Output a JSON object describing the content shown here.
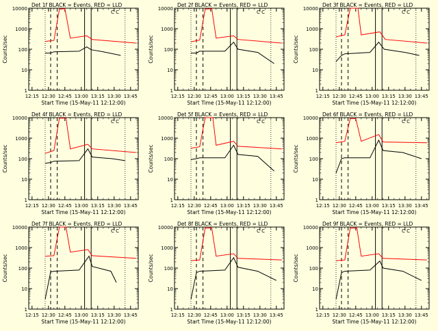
{
  "chart_data": {
    "type": "line",
    "y_scale": "log",
    "ylim": [
      1,
      10000
    ],
    "y_ticks": [
      1,
      10,
      100,
      1000,
      10000
    ],
    "y_tick_labels": [
      "1",
      "10",
      "100",
      "1000",
      "10000"
    ],
    "ylabel": "Counts/sec",
    "xlabel": "Start Time (15-May-11 12:12:00)",
    "x_range": [
      "12:12",
      "13:52"
    ],
    "x_ticks": [
      "12:15",
      "12:30",
      "12:45",
      "13:00",
      "13:15",
      "13:30",
      "13:45"
    ],
    "series_legend": "BLACK = Events, RED = LLD",
    "colors": {
      "events": "#000000",
      "lld": "#ff0000",
      "background": "#ffffe0"
    },
    "dashed_markers": [
      "12:32",
      "12:38"
    ],
    "solid_markers": [
      "13:03",
      "13:09"
    ],
    "dotted_markers": [
      "12:27",
      "13:40"
    ],
    "panels": [
      {
        "title": "Det 1f BLACK = Events, RED = LLD",
        "flags": "C C",
        "series": [
          {
            "name": "Events",
            "values": [
              [
                12.27,
                65
              ],
              [
                12.32,
                65
              ],
              [
                12.35,
                75
              ],
              [
                12.58,
                80
              ],
              [
                13.05,
                130
              ],
              [
                13.09,
                95
              ],
              [
                13.2,
                75
              ],
              [
                13.36,
                50
              ]
            ]
          },
          {
            "name": "LLD",
            "values": [
              [
                12.27,
                240
              ],
              [
                12.35,
                270
              ],
              [
                12.4,
                9000
              ],
              [
                12.45,
                9500
              ],
              [
                12.5,
                350
              ],
              [
                13.05,
                450
              ],
              [
                13.1,
                300
              ],
              [
                13.5,
                200
              ]
            ]
          }
        ]
      },
      {
        "title": "Det 2f BLACK = Events, RED = LLD",
        "flags": "C C",
        "series": [
          {
            "name": "Events",
            "values": [
              [
                12.27,
                65
              ],
              [
                12.32,
                65
              ],
              [
                12.35,
                80
              ],
              [
                12.58,
                80
              ],
              [
                13.06,
                220
              ],
              [
                13.1,
                100
              ],
              [
                13.28,
                70
              ],
              [
                13.43,
                20
              ]
            ]
          },
          {
            "name": "LLD",
            "values": [
              [
                12.27,
                230
              ],
              [
                12.35,
                280
              ],
              [
                12.4,
                9000
              ],
              [
                12.46,
                9500
              ],
              [
                12.5,
                350
              ],
              [
                13.06,
                450
              ],
              [
                13.1,
                300
              ],
              [
                13.5,
                200
              ]
            ]
          }
        ]
      },
      {
        "title": "Det 3f BLACK = Events, RED = LLD",
        "flags": "C C",
        "series": [
          {
            "name": "Events",
            "values": [
              [
                12.27,
                25
              ],
              [
                12.32,
                50
              ],
              [
                12.35,
                60
              ],
              [
                12.58,
                70
              ],
              [
                13.06,
                220
              ],
              [
                13.11,
                100
              ],
              [
                13.3,
                70
              ],
              [
                13.43,
                50
              ]
            ]
          },
          {
            "name": "LLD",
            "values": [
              [
                12.27,
                400
              ],
              [
                12.35,
                500
              ],
              [
                12.4,
                10000
              ],
              [
                12.47,
                10000
              ],
              [
                12.5,
                500
              ],
              [
                13.07,
                700
              ],
              [
                13.12,
                300
              ],
              [
                13.5,
                200
              ]
            ]
          }
        ]
      },
      {
        "title": "Det 4f BLACK = Events, RED = LLD",
        "flags": "C C",
        "series": [
          {
            "name": "Events",
            "values": [
              [
                12.27,
                60
              ],
              [
                12.32,
                65
              ],
              [
                12.35,
                75
              ],
              [
                12.58,
                80
              ],
              [
                13.06,
                300
              ],
              [
                13.1,
                120
              ],
              [
                13.28,
                100
              ],
              [
                13.4,
                80
              ]
            ]
          },
          {
            "name": "LLD",
            "values": [
              [
                12.27,
                180
              ],
              [
                12.35,
                250
              ],
              [
                12.4,
                9500
              ],
              [
                12.46,
                9500
              ],
              [
                12.5,
                300
              ],
              [
                13.06,
                500
              ],
              [
                13.1,
                300
              ],
              [
                13.5,
                200
              ]
            ]
          }
        ]
      },
      {
        "title": "Det 5f BLACK = Events, RED = LLD",
        "flags": "C C",
        "series": [
          {
            "name": "Events",
            "values": [
              [
                12.27,
                90
              ],
              [
                12.32,
                100
              ],
              [
                12.35,
                110
              ],
              [
                12.58,
                110
              ],
              [
                13.06,
                450
              ],
              [
                13.1,
                160
              ],
              [
                13.28,
                130
              ],
              [
                13.43,
                25
              ]
            ]
          },
          {
            "name": "LLD",
            "values": [
              [
                12.27,
                320
              ],
              [
                12.35,
                380
              ],
              [
                12.4,
                10000
              ],
              [
                12.47,
                10000
              ],
              [
                12.5,
                450
              ],
              [
                13.06,
                700
              ],
              [
                13.1,
                400
              ],
              [
                13.5,
                300
              ]
            ]
          }
        ]
      },
      {
        "title": "Det 6f BLACK = Events, RED = LLD",
        "flags": "C C",
        "series": [
          {
            "name": "Events",
            "values": [
              [
                12.27,
                20
              ],
              [
                12.32,
                100
              ],
              [
                12.35,
                110
              ],
              [
                12.58,
                110
              ],
              [
                13.06,
                800
              ],
              [
                13.1,
                250
              ],
              [
                13.28,
                200
              ],
              [
                13.45,
                100
              ]
            ]
          },
          {
            "name": "LLD",
            "values": [
              [
                12.27,
                600
              ],
              [
                12.35,
                700
              ],
              [
                12.4,
                9000
              ],
              [
                12.45,
                9000
              ],
              [
                12.5,
                700
              ],
              [
                13.06,
                1500
              ],
              [
                13.1,
                650
              ],
              [
                13.5,
                600
              ]
            ]
          }
        ]
      },
      {
        "title": "Det 7f BLACK = Events, RED = LLD",
        "flags": "C C",
        "series": [
          {
            "name": "Events",
            "values": [
              [
                12.27,
                3
              ],
              [
                12.32,
                65
              ],
              [
                12.35,
                70
              ],
              [
                12.58,
                80
              ],
              [
                13.07,
                380
              ],
              [
                13.1,
                120
              ],
              [
                13.27,
                70
              ],
              [
                13.32,
                20
              ]
            ]
          },
          {
            "name": "LLD",
            "values": [
              [
                12.27,
                380
              ],
              [
                12.35,
                400
              ],
              [
                12.4,
                10000
              ],
              [
                12.46,
                10000
              ],
              [
                12.5,
                600
              ],
              [
                13.06,
                800
              ],
              [
                13.1,
                400
              ],
              [
                13.5,
                300
              ]
            ]
          }
        ]
      },
      {
        "title": "Det 8f BLACK = Events, RED = LLD",
        "flags": "C C",
        "series": [
          {
            "name": "Events",
            "values": [
              [
                12.27,
                3
              ],
              [
                12.32,
                60
              ],
              [
                12.35,
                70
              ],
              [
                12.58,
                80
              ],
              [
                13.06,
                320
              ],
              [
                13.1,
                110
              ],
              [
                13.28,
                70
              ],
              [
                13.45,
                25
              ]
            ]
          },
          {
            "name": "LLD",
            "values": [
              [
                12.27,
                230
              ],
              [
                12.35,
                250
              ],
              [
                12.4,
                9000
              ],
              [
                12.46,
                9000
              ],
              [
                12.5,
                380
              ],
              [
                13.06,
                500
              ],
              [
                13.1,
                300
              ],
              [
                13.5,
                250
              ]
            ]
          }
        ]
      },
      {
        "title": "Det 9f BLACK = Events, RED = LLD",
        "flags": "C C",
        "series": [
          {
            "name": "Events",
            "values": [
              [
                12.27,
                3
              ],
              [
                12.32,
                60
              ],
              [
                12.35,
                70
              ],
              [
                12.58,
                80
              ],
              [
                13.07,
                220
              ],
              [
                13.1,
                100
              ],
              [
                13.28,
                70
              ],
              [
                13.45,
                25
              ]
            ]
          },
          {
            "name": "LLD",
            "values": [
              [
                12.27,
                230
              ],
              [
                12.35,
                250
              ],
              [
                12.4,
                9000
              ],
              [
                12.46,
                9000
              ],
              [
                12.5,
                380
              ],
              [
                13.06,
                500
              ],
              [
                13.1,
                300
              ],
              [
                13.5,
                250
              ]
            ]
          }
        ]
      }
    ]
  }
}
